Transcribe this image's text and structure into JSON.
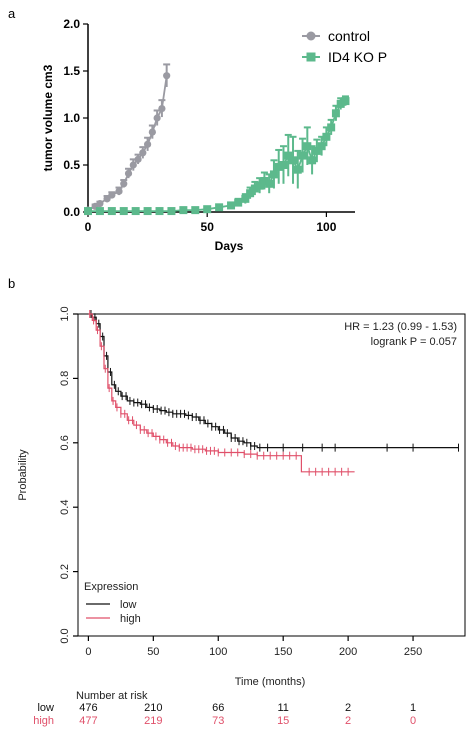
{
  "panels": {
    "a": "a",
    "b": "b"
  },
  "chart_data": [
    {
      "type": "line",
      "panel": "a",
      "xlabel": "Days",
      "ylabel": "tumor volume cm3",
      "xlim": [
        0,
        112
      ],
      "ylim": [
        0,
        2.0
      ],
      "xticks": [
        0,
        50,
        100
      ],
      "yticks": [
        "0.0",
        "0.5",
        "1.0",
        "1.5",
        "2.0"
      ],
      "legend_position": "top-right",
      "series": [
        {
          "name": "control",
          "color": "#9a9aa2",
          "marker": "circle",
          "x": [
            0,
            3,
            5,
            8,
            10,
            13,
            15,
            17,
            19,
            21,
            23,
            25,
            27,
            29,
            31,
            33
          ],
          "y": [
            0.02,
            0.06,
            0.09,
            0.14,
            0.18,
            0.22,
            0.3,
            0.41,
            0.5,
            0.56,
            0.63,
            0.72,
            0.85,
            1.0,
            1.1,
            1.45
          ],
          "err": [
            0.01,
            0.02,
            0.02,
            0.03,
            0.03,
            0.04,
            0.04,
            0.05,
            0.06,
            0.05,
            0.06,
            0.07,
            0.07,
            0.08,
            0.09,
            0.12
          ]
        },
        {
          "name": "ID4 KO P",
          "color": "#5cb98c",
          "marker": "square",
          "x": [
            0,
            5,
            10,
            15,
            20,
            25,
            30,
            35,
            40,
            45,
            50,
            55,
            60,
            63,
            66,
            68,
            70,
            72,
            74,
            76,
            78,
            80,
            82,
            84,
            86,
            88,
            90,
            92,
            94,
            96,
            98,
            100,
            102,
            104,
            106,
            108
          ],
          "y": [
            0.01,
            0.01,
            0.01,
            0.01,
            0.01,
            0.01,
            0.01,
            0.01,
            0.02,
            0.02,
            0.03,
            0.05,
            0.07,
            0.1,
            0.14,
            0.2,
            0.25,
            0.28,
            0.33,
            0.3,
            0.4,
            0.48,
            0.5,
            0.6,
            0.55,
            0.45,
            0.6,
            0.7,
            0.55,
            0.65,
            0.7,
            0.8,
            0.9,
            1.05,
            1.15,
            1.18
          ],
          "err": [
            0,
            0,
            0,
            0,
            0,
            0,
            0,
            0.01,
            0.01,
            0.01,
            0.01,
            0.02,
            0.03,
            0.04,
            0.05,
            0.06,
            0.07,
            0.08,
            0.09,
            0.1,
            0.15,
            0.18,
            0.2,
            0.22,
            0.25,
            0.2,
            0.18,
            0.2,
            0.15,
            0.12,
            0.1,
            0.1,
            0.08,
            0.08,
            0.06,
            0.05
          ]
        }
      ]
    },
    {
      "type": "line",
      "panel": "b",
      "subtype": "kaplan-meier",
      "xlabel": "Time (months)",
      "ylabel": "Probability",
      "xlim": [
        -8,
        290
      ],
      "ylim": [
        0,
        1.0
      ],
      "xticks": [
        0,
        50,
        100,
        150,
        200,
        250
      ],
      "yticks": [
        "0.0",
        "0.2",
        "0.4",
        "0.6",
        "0.8",
        "1.0"
      ],
      "annotations": [
        "HR = 1.23 (0.99 - 1.53)",
        "logrank P = 0.057"
      ],
      "legend_title": "Expression",
      "legend_position": "bottom-left",
      "series": [
        {
          "name": "low",
          "color": "#111111",
          "x": [
            0,
            3,
            6,
            9,
            12,
            15,
            18,
            21,
            25,
            30,
            35,
            40,
            45,
            50,
            55,
            60,
            65,
            70,
            75,
            80,
            85,
            90,
            95,
            100,
            105,
            110,
            115,
            120,
            125,
            130,
            140,
            150,
            200,
            285
          ],
          "y": [
            1.0,
            0.99,
            0.97,
            0.93,
            0.87,
            0.82,
            0.78,
            0.76,
            0.745,
            0.73,
            0.725,
            0.72,
            0.71,
            0.705,
            0.7,
            0.695,
            0.69,
            0.69,
            0.685,
            0.68,
            0.67,
            0.66,
            0.65,
            0.64,
            0.63,
            0.615,
            0.605,
            0.6,
            0.59,
            0.585,
            0.585,
            0.585,
            0.585,
            0.585
          ],
          "censor_x": [
            2,
            5,
            8,
            11,
            14,
            17,
            20,
            23,
            26,
            29,
            32,
            35,
            38,
            41,
            44,
            47,
            50,
            53,
            56,
            59,
            62,
            65,
            68,
            71,
            74,
            77,
            80,
            83,
            86,
            89,
            92,
            95,
            98,
            101,
            104,
            107,
            110,
            113,
            116,
            119,
            122,
            125,
            128,
            132,
            138,
            150,
            165,
            180,
            190,
            230,
            250,
            285
          ]
        },
        {
          "name": "high",
          "color": "#e0506a",
          "x": [
            0,
            3,
            6,
            9,
            12,
            15,
            18,
            21,
            25,
            30,
            35,
            40,
            45,
            50,
            55,
            60,
            65,
            70,
            80,
            90,
            100,
            110,
            120,
            130,
            140,
            150,
            160,
            163,
            164,
            205
          ],
          "y": [
            1.0,
            0.98,
            0.95,
            0.9,
            0.83,
            0.77,
            0.73,
            0.71,
            0.69,
            0.67,
            0.655,
            0.64,
            0.63,
            0.62,
            0.61,
            0.6,
            0.59,
            0.585,
            0.58,
            0.575,
            0.57,
            0.57,
            0.565,
            0.56,
            0.56,
            0.56,
            0.56,
            0.56,
            0.51,
            0.51
          ],
          "censor_x": [
            1,
            4,
            7,
            10,
            13,
            16,
            19,
            22,
            25,
            28,
            31,
            34,
            37,
            40,
            43,
            46,
            49,
            52,
            55,
            58,
            61,
            64,
            67,
            70,
            73,
            76,
            79,
            82,
            85,
            88,
            91,
            94,
            97,
            100,
            105,
            110,
            115,
            120,
            125,
            130,
            135,
            140,
            145,
            150,
            155,
            160,
            170,
            175,
            180,
            185,
            190,
            195,
            200
          ]
        }
      ],
      "risk_table": {
        "header": "Number at risk",
        "times": [
          0,
          50,
          100,
          150,
          200,
          250
        ],
        "rows": [
          {
            "label": "low",
            "color": "#111111",
            "values": [
              "476",
              "210",
              "66",
              "11",
              "2",
              "1"
            ]
          },
          {
            "label": "high",
            "color": "#e0506a",
            "values": [
              "477",
              "219",
              "73",
              "15",
              "2",
              "0"
            ]
          }
        ]
      }
    }
  ]
}
